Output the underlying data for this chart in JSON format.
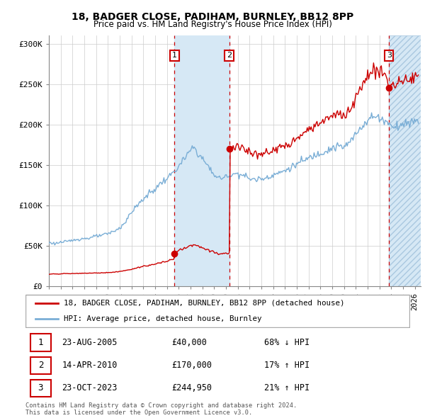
{
  "title": "18, BADGER CLOSE, PADIHAM, BURNLEY, BB12 8PP",
  "subtitle": "Price paid vs. HM Land Registry's House Price Index (HPI)",
  "xlim": [
    1995,
    2026.5
  ],
  "ylim": [
    0,
    310000
  ],
  "yticks": [
    0,
    50000,
    100000,
    150000,
    200000,
    250000,
    300000
  ],
  "ytick_labels": [
    "£0",
    "£50K",
    "£100K",
    "£150K",
    "£200K",
    "£250K",
    "£300K"
  ],
  "transactions": [
    {
      "date": "23-AUG-2005",
      "price": 40000,
      "pct": "68% ↓ HPI",
      "marker_x": 2005.645
    },
    {
      "date": "14-APR-2010",
      "price": 170000,
      "pct": "17% ↑ HPI",
      "marker_x": 2010.286
    },
    {
      "date": "23-OCT-2023",
      "price": 244950,
      "pct": "21% ↑ HPI",
      "marker_x": 2023.813
    }
  ],
  "sale_color": "#cc0000",
  "hpi_color": "#7aaed6",
  "shade_color": "#d6e8f5",
  "vline_color": "#cc0000",
  "footnote": "Contains HM Land Registry data © Crown copyright and database right 2024.\nThis data is licensed under the Open Government Licence v3.0.",
  "legend_property_label": "18, BADGER CLOSE, PADIHAM, BURNLEY, BB12 8PP (detached house)",
  "legend_hpi_label": "HPI: Average price, detached house, Burnley",
  "shade_region1": [
    2005.645,
    2010.286
  ],
  "shade_region2": [
    2023.813,
    2026.5
  ]
}
